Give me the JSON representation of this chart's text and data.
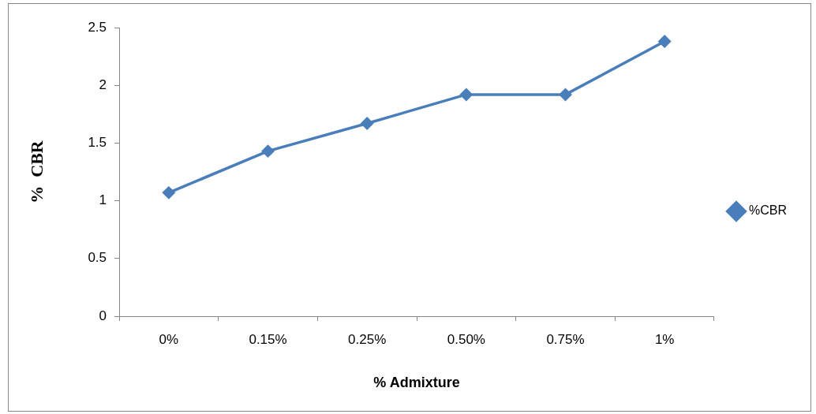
{
  "chart_data": {
    "type": "line",
    "xlabel": "% Admixture",
    "ylabel": "%  CBR",
    "categories": [
      "0%",
      "0.15%",
      "0.25%",
      "0.50%",
      "0.75%",
      "1%"
    ],
    "series": [
      {
        "name": "%CBR",
        "color": "#4a7ebb",
        "values": [
          1.07,
          1.43,
          1.67,
          1.92,
          1.92,
          2.38
        ]
      }
    ],
    "ylim": [
      0,
      2.5
    ],
    "yticks": [
      0,
      0.5,
      1,
      1.5,
      2,
      2.5
    ],
    "grid": false,
    "legend": "right",
    "marker": "diamond",
    "line_style": "solid"
  }
}
